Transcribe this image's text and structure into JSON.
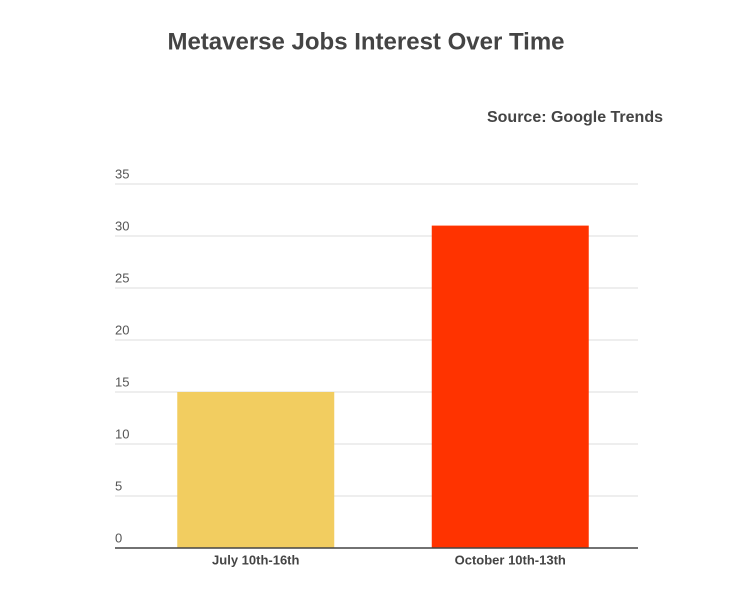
{
  "chart_data": {
    "type": "bar",
    "title": "Metaverse Jobs Interest Over Time",
    "annotation": "Source: Google Trends",
    "categories": [
      "July 10th-16th",
      "October 10th-13th"
    ],
    "values": [
      15,
      31
    ],
    "colors": [
      "#f2cd60",
      "#ff3300"
    ],
    "ylim": [
      0,
      35
    ],
    "yticks": [
      0,
      5,
      10,
      15,
      20,
      25,
      30,
      35
    ],
    "grid": true
  }
}
